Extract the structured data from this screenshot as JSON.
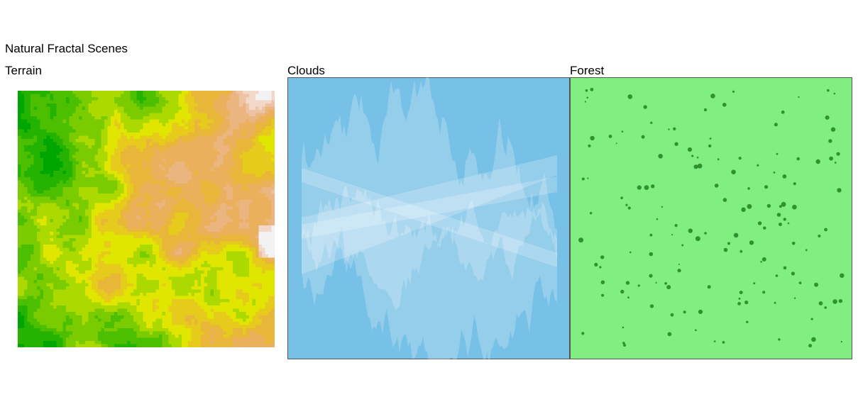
{
  "title": "Natural Fractal Scenes",
  "colors": {
    "sky": "#78c1e6",
    "cloud": "#ffffff",
    "grass": "#80ee80",
    "tree": "#1a7a1a",
    "terrain_palette": [
      "#00a600",
      "#24b300",
      "#4cbf00",
      "#7acc00",
      "#abd900",
      "#e0e600",
      "#e6cb1c",
      "#e8b73a",
      "#eab05c",
      "#ebb580",
      "#eec3a3",
      "#f2d8c8",
      "#f2f2f2"
    ]
  },
  "chart_data": [
    {
      "type": "heatmap",
      "title": "Terrain",
      "grid_resolution": 80,
      "palette": "terrain.colors",
      "description_values": "fractal elevation field: low (green) on left, high (tan/white) on right"
    },
    {
      "type": "area",
      "title": "Clouds",
      "x_range": [
        0,
        1
      ],
      "y_range": [
        0,
        1
      ],
      "layers": 3,
      "fill": "semi-transparent white over sky blue"
    },
    {
      "type": "scatter",
      "title": "Forest",
      "x_range": [
        0,
        1
      ],
      "y_range": [
        0,
        1
      ],
      "point_count": 150,
      "marker": "dark green circles, varying size"
    }
  ]
}
